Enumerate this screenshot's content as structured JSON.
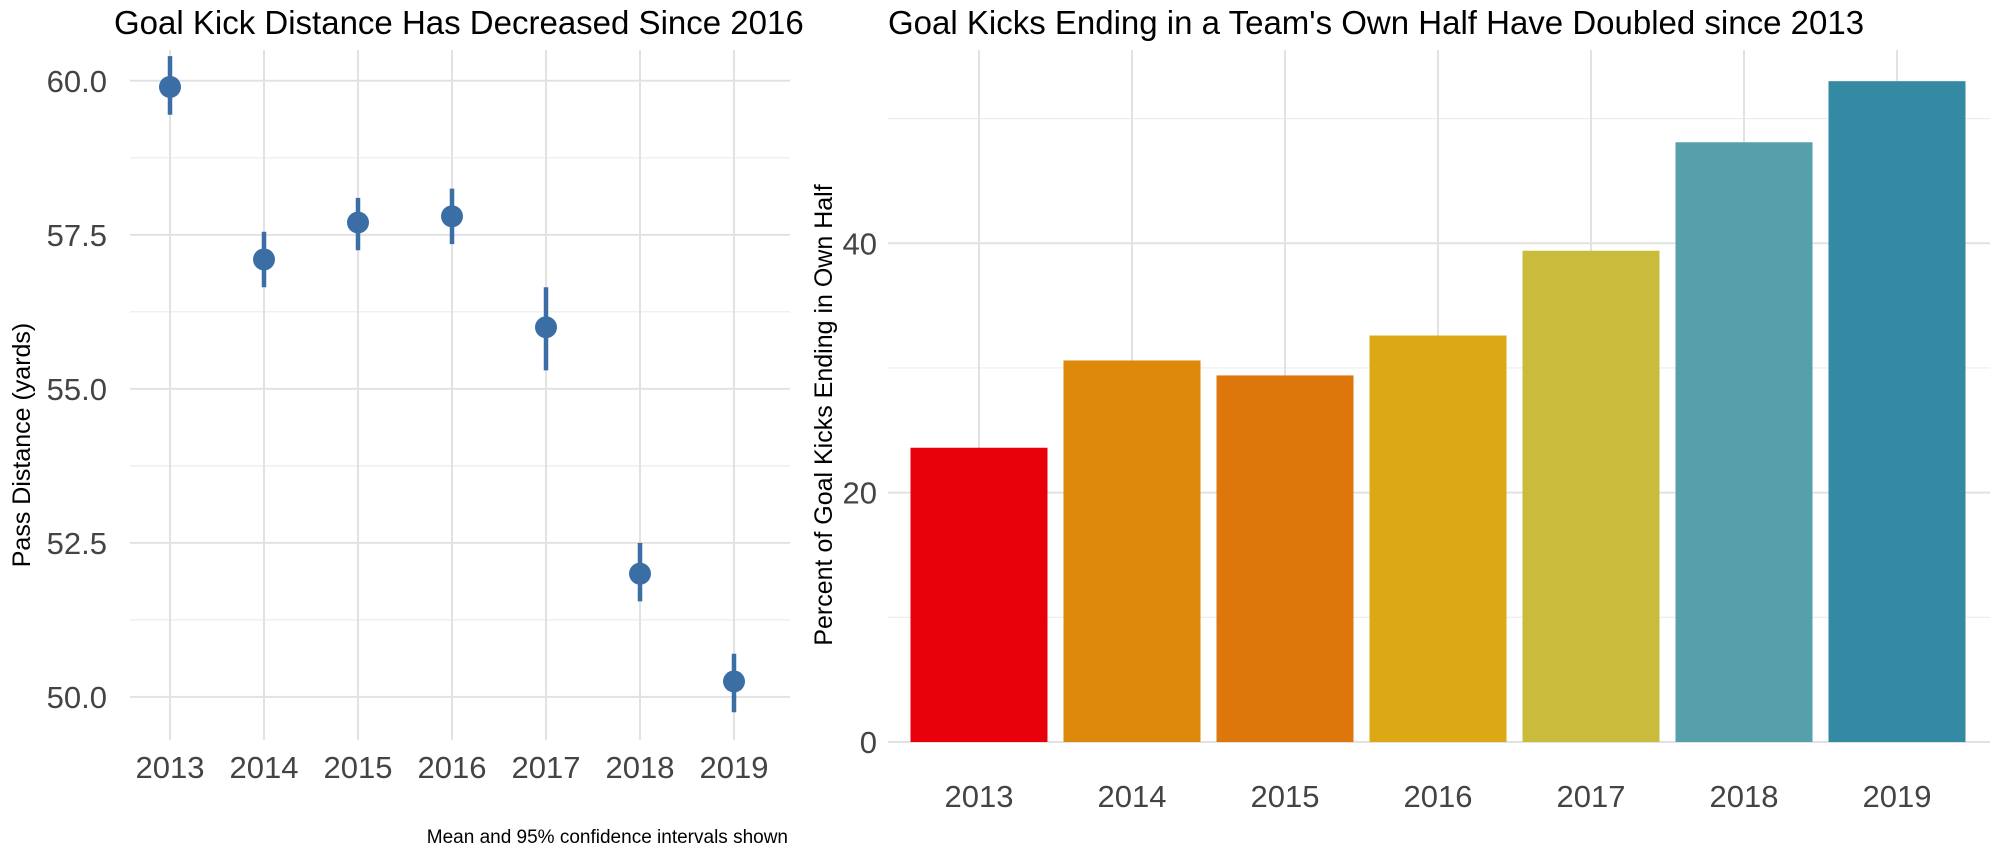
{
  "chart_data": [
    {
      "type": "scatter",
      "title": "Goal Kick Distance Has Decreased Since 2016",
      "xlabel": "",
      "ylabel": "Pass Distance (yards)",
      "caption": "Mean and 95% confidence intervals shown",
      "categories": [
        "2013",
        "2014",
        "2015",
        "2016",
        "2017",
        "2018",
        "2019"
      ],
      "values": [
        59.9,
        57.1,
        57.7,
        57.8,
        56.0,
        52.0,
        50.25
      ],
      "ci_lower": [
        59.45,
        56.65,
        57.25,
        57.35,
        55.3,
        51.55,
        49.75
      ],
      "ci_upper": [
        60.4,
        57.55,
        58.1,
        58.25,
        56.65,
        52.5,
        50.7
      ],
      "yticks": [
        "50.0",
        "52.5",
        "55.0",
        "57.5",
        "60.0"
      ],
      "ylim": [
        49.3,
        60.5
      ],
      "grid": true,
      "color": "#3b6ea5"
    },
    {
      "type": "bar",
      "title": "Goal Kicks Ending in a Team's Own Half Have Doubled since 2013",
      "xlabel": "",
      "ylabel": "Percent of Goal Kicks Ending in Own Half",
      "categories": [
        "2013",
        "2014",
        "2015",
        "2016",
        "2017",
        "2018",
        "2019"
      ],
      "values": [
        23.6,
        30.6,
        29.4,
        32.6,
        39.4,
        48.1,
        53.0
      ],
      "yticks": [
        "0",
        "20",
        "40"
      ],
      "ylim": [
        0,
        55.5
      ],
      "grid": true,
      "colors": [
        "#e8000b",
        "#dd8a0b",
        "#dd760b",
        "#dca814",
        "#c9bb3c",
        "#56a0ab",
        "#338aa2"
      ]
    }
  ]
}
